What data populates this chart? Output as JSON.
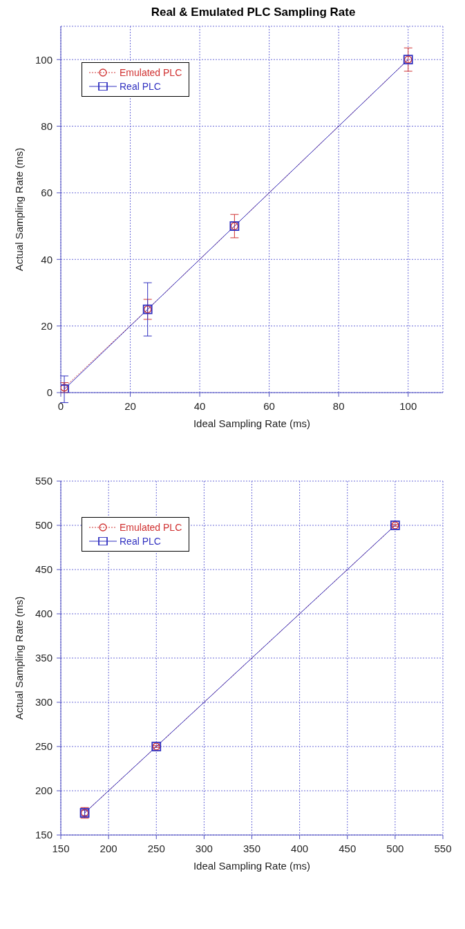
{
  "chart_data": [
    {
      "type": "line",
      "title": "Real & Emulated PLC Sampling Rate",
      "xlabel": "Ideal Sampling Rate (ms)",
      "ylabel": "Actual Sampling Rate (ms)",
      "x": [
        1,
        25,
        50,
        100
      ],
      "xlim": [
        0,
        110
      ],
      "xticks": [
        0,
        20,
        40,
        60,
        80,
        100
      ],
      "ylim": [
        0,
        110
      ],
      "yticks": [
        0,
        20,
        40,
        60,
        80,
        100
      ],
      "grid": true,
      "legend": "top left",
      "series": [
        {
          "name": "Emulated PLC",
          "color": "#d03030",
          "values": [
            1.5,
            25,
            50,
            100
          ],
          "errors": [
            1.5,
            3,
            3.5,
            3.5
          ],
          "marker": "circle",
          "line_style": "dotted"
        },
        {
          "name": "Real PLC",
          "color": "#3030c0",
          "values": [
            1,
            25,
            50,
            100
          ],
          "errors": [
            4,
            8,
            null,
            null
          ],
          "marker": "square",
          "line_style": "solid"
        }
      ]
    },
    {
      "type": "line",
      "xlabel": "Ideal Sampling Rate (ms)",
      "ylabel": "Actual Sampling Rate (ms)",
      "x": [
        175,
        250,
        500
      ],
      "xlim": [
        150,
        550
      ],
      "xticks": [
        150,
        200,
        250,
        300,
        350,
        400,
        450,
        500,
        550
      ],
      "ylim": [
        150,
        550
      ],
      "yticks": [
        150,
        200,
        250,
        300,
        350,
        400,
        450,
        500,
        550
      ],
      "grid": true,
      "legend": "top left",
      "series": [
        {
          "name": "Emulated PLC",
          "color": "#d03030",
          "values": [
            175,
            250,
            500
          ],
          "errors": [
            6,
            1,
            1
          ],
          "marker": "circle",
          "line_style": "dotted"
        },
        {
          "name": "Real PLC",
          "color": "#3030c0",
          "values": [
            175,
            250,
            500
          ],
          "errors": [
            3,
            null,
            null
          ],
          "marker": "square",
          "line_style": "solid"
        }
      ]
    }
  ]
}
